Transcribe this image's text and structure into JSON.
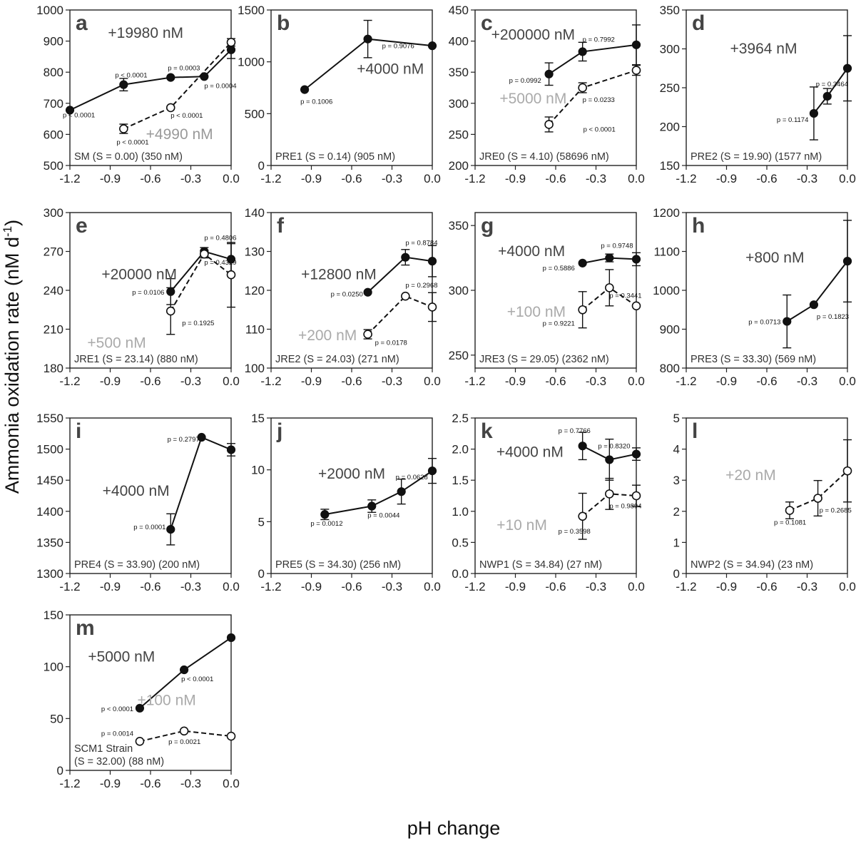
{
  "figure": {
    "y_axis_title": "Ammonia oxidation rate (nM d",
    "y_axis_title_sup": "-1",
    "y_axis_title_end": ")",
    "x_axis_title": "pH change"
  },
  "chart_data": [
    {
      "type": "line",
      "panel": "a",
      "site_label": "SM (S = 0.00) (350 nM)",
      "xlim": [
        -1.2,
        0.0
      ],
      "ylim": [
        500,
        1000
      ],
      "xticks": [
        "-1.2",
        "-0.9",
        "-0.6",
        "-0.3",
        "0.0"
      ],
      "yticks": [
        "500",
        "600",
        "700",
        "800",
        "900",
        "1000"
      ],
      "series": [
        {
          "name": "+19980 nM",
          "style": "filled-solid",
          "color": "#444444",
          "x": [
            -1.2,
            -0.8,
            -0.45,
            -0.2,
            0.0
          ],
          "y": [
            678,
            760,
            783,
            786,
            872
          ],
          "err": [
            0,
            20,
            0,
            0,
            28
          ],
          "p": [
            "p < 0.0001",
            "p < 0.0001",
            "p = 0.0003",
            "p = 0.0004",
            ""
          ]
        },
        {
          "name": "+4990 nM",
          "style": "open-dashed",
          "color": "#999999",
          "x": [
            -0.8,
            -0.45,
            0.0
          ],
          "y": [
            618,
            686,
            896
          ],
          "err": [
            15,
            0,
            12
          ],
          "p": [
            "p < 0.0001",
            "p < 0.0001",
            ""
          ]
        }
      ]
    },
    {
      "type": "line",
      "panel": "b",
      "site_label": "PRE1 (S = 0.14) (905 nM)",
      "xlim": [
        -1.2,
        0.0
      ],
      "ylim": [
        0,
        1500
      ],
      "xticks": [
        "-1.2",
        "-0.9",
        "-0.6",
        "-0.3",
        "0.0"
      ],
      "yticks": [
        "0",
        "500",
        "1000",
        "1500"
      ],
      "series": [
        {
          "name": "+4000 nM",
          "style": "filled-solid",
          "color": "#444444",
          "x": [
            -0.95,
            -0.48,
            0.0
          ],
          "y": [
            732,
            1220,
            1155
          ],
          "err": [
            0,
            180,
            0
          ],
          "p": [
            "p = 0.1006",
            "p = 0.9076",
            ""
          ]
        }
      ]
    },
    {
      "type": "line",
      "panel": "c",
      "site_label": "JRE0 (S = 4.10) (58696 nM)",
      "xlim": [
        -1.2,
        0.0
      ],
      "ylim": [
        200,
        450
      ],
      "xticks": [
        "-1.2",
        "-0.9",
        "-0.6",
        "-0.3",
        "0.0"
      ],
      "yticks": [
        "200",
        "250",
        "300",
        "350",
        "400",
        "450"
      ],
      "series": [
        {
          "name": "+200000 nM",
          "style": "filled-solid",
          "color": "#444444",
          "x": [
            -0.65,
            -0.4,
            0.0
          ],
          "y": [
            347,
            383,
            394
          ],
          "err": [
            18,
            15,
            32
          ],
          "p": [
            "p = 0.0992",
            "p = 0.7992",
            ""
          ]
        },
        {
          "name": "+5000 nM",
          "style": "open-dashed",
          "color": "#aaaaaa",
          "x": [
            -0.65,
            -0.4,
            0.0
          ],
          "y": [
            266,
            325,
            353
          ],
          "err": [
            12,
            8,
            8
          ],
          "p": [
            "p < 0.0001",
            "p = 0.0233",
            ""
          ]
        }
      ]
    },
    {
      "type": "line",
      "panel": "d",
      "site_label": "PRE2 (S = 19.90) (1577 nM)",
      "xlim": [
        -1.2,
        0.0
      ],
      "ylim": [
        150,
        350
      ],
      "xticks": [
        "-1.2",
        "-0.9",
        "-0.6",
        "-0.3",
        "0.0"
      ],
      "yticks": [
        "150",
        "200",
        "250",
        "300",
        "350"
      ],
      "series": [
        {
          "name": "+3964 nM",
          "style": "filled-solid",
          "color": "#444444",
          "x": [
            -0.25,
            -0.15,
            0.0
          ],
          "y": [
            217,
            239,
            275
          ],
          "err": [
            34,
            10,
            42
          ],
          "p": [
            "p = 0.1174",
            "p = 0.3464",
            ""
          ]
        }
      ]
    },
    {
      "type": "line",
      "panel": "e",
      "site_label": "JRE1 (S = 23.14) (880 nM)",
      "xlim": [
        -1.2,
        0.0
      ],
      "ylim": [
        180,
        300
      ],
      "xticks": [
        "-1.2",
        "-0.9",
        "-0.6",
        "-0.3",
        "0.0"
      ],
      "yticks": [
        "180",
        "210",
        "240",
        "270",
        "300"
      ],
      "series": [
        {
          "name": "+20000 nM",
          "style": "filled-solid",
          "color": "#444444",
          "x": [
            -0.45,
            -0.2,
            0.0
          ],
          "y": [
            239,
            270,
            264
          ],
          "err": [
            10,
            3,
            12
          ],
          "p": [
            "p = 0.0106",
            "p = 0.4806",
            ""
          ]
        },
        {
          "name": "+500 nM",
          "style": "open-dashed",
          "color": "#aaaaaa",
          "x": [
            -0.45,
            -0.2,
            0.0
          ],
          "y": [
            224,
            268,
            252
          ],
          "err": [
            18,
            3,
            25
          ],
          "p": [
            "p = 0.1925",
            "p = 0.4329",
            ""
          ]
        }
      ]
    },
    {
      "type": "line",
      "panel": "f",
      "site_label": "JRE2 (S = 24.03) (271 nM)",
      "xlim": [
        -1.2,
        0.0
      ],
      "ylim": [
        100,
        140
      ],
      "xticks": [
        "-1.2",
        "-0.9",
        "-0.6",
        "-0.3",
        "0.0"
      ],
      "yticks": [
        "100",
        "110",
        "120",
        "130",
        "140"
      ],
      "series": [
        {
          "name": "+12800 nM",
          "style": "filled-solid",
          "color": "#444444",
          "x": [
            -0.48,
            -0.2,
            0.0
          ],
          "y": [
            119.5,
            128.5,
            127.5
          ],
          "err": [
            0,
            2,
            4
          ],
          "p": [
            "p = 0.0250",
            "p = 0.8784",
            ""
          ]
        },
        {
          "name": "+200 nM",
          "style": "open-dashed",
          "color": "#aaaaaa",
          "x": [
            -0.48,
            -0.2,
            0.0
          ],
          "y": [
            108.7,
            118.5,
            115.7
          ],
          "err": [
            1.2,
            0,
            3.7
          ],
          "p": [
            "p = 0.0178",
            "p = 0.2968",
            ""
          ]
        }
      ]
    },
    {
      "type": "line",
      "panel": "g",
      "site_label": "JRE3 (S = 29.05) (2362 nM)",
      "xlim": [
        -1.2,
        0.0
      ],
      "ylim": [
        240,
        360
      ],
      "xticks": [
        "-1.2",
        "-0.9",
        "-0.6",
        "-0.3",
        "0.0"
      ],
      "yticks": [
        "250",
        "300",
        "350"
      ],
      "series": [
        {
          "name": "+4000 nM",
          "style": "filled-solid",
          "color": "#444444",
          "x": [
            -0.4,
            -0.2,
            0.0
          ],
          "y": [
            321,
            325,
            324
          ],
          "err": [
            0,
            3,
            5
          ],
          "p": [
            "p = 0.5886",
            "p = 0.9748",
            ""
          ]
        },
        {
          "name": "+100 nM",
          "style": "open-dashed",
          "color": "#aaaaaa",
          "x": [
            -0.4,
            -0.2,
            0.0
          ],
          "y": [
            285,
            302,
            288
          ],
          "err": [
            14,
            14,
            0
          ],
          "p": [
            "p = 0.9221",
            "p = 0.3441",
            ""
          ]
        }
      ]
    },
    {
      "type": "line",
      "panel": "h",
      "site_label": "PRE3 (S = 33.30) (569 nM)",
      "xlim": [
        -1.2,
        0.0
      ],
      "ylim": [
        800,
        1200
      ],
      "xticks": [
        "-1.2",
        "-0.9",
        "-0.6",
        "-0.3",
        "0.0"
      ],
      "yticks": [
        "800",
        "900",
        "1000",
        "1100",
        "1200"
      ],
      "series": [
        {
          "name": "+800 nM",
          "style": "filled-solid",
          "color": "#444444",
          "x": [
            -0.45,
            -0.25,
            0.0
          ],
          "y": [
            920,
            963,
            1075
          ],
          "err": [
            68,
            0,
            105
          ],
          "p": [
            "p = 0.0713",
            "p = 0.1823",
            ""
          ]
        }
      ]
    },
    {
      "type": "line",
      "panel": "i",
      "site_label": "PRE4 (S = 33.90) (200 nM)",
      "xlim": [
        -1.2,
        0.0
      ],
      "ylim": [
        1300,
        1550
      ],
      "xticks": [
        "-1.2",
        "-0.9",
        "-0.6",
        "-0.3",
        "0.0"
      ],
      "yticks": [
        "1300",
        "1350",
        "1400",
        "1450",
        "1500",
        "1550"
      ],
      "series": [
        {
          "name": "+4000 nM",
          "style": "filled-solid",
          "color": "#444444",
          "x": [
            -0.45,
            -0.22,
            0.0
          ],
          "y": [
            1371,
            1519,
            1499
          ],
          "err": [
            25,
            0,
            10
          ],
          "p": [
            "p = 0.0001",
            "p = 0.2797",
            ""
          ]
        }
      ]
    },
    {
      "type": "line",
      "panel": "j",
      "site_label": "PRE5 (S = 34.30) (256 nM)",
      "xlim": [
        -1.2,
        0.0
      ],
      "ylim": [
        0,
        15
      ],
      "xticks": [
        "-1.2",
        "-0.9",
        "-0.6",
        "-0.3",
        "0.0"
      ],
      "yticks": [
        "0",
        "5",
        "10",
        "15"
      ],
      "series": [
        {
          "name": "+2000 nM",
          "style": "filled-solid",
          "color": "#444444",
          "x": [
            -0.8,
            -0.45,
            -0.23,
            0.0
          ],
          "y": [
            5.7,
            6.5,
            7.9,
            9.9
          ],
          "err": [
            0.5,
            0.6,
            1.2,
            1.2
          ],
          "p": [
            "p = 0.0012",
            "p = 0.0044",
            "p = 0.0628",
            ""
          ]
        }
      ]
    },
    {
      "type": "line",
      "panel": "k",
      "site_label": "NWP1 (S = 34.84) (27 nM)",
      "xlim": [
        -1.2,
        0.0
      ],
      "ylim": [
        0,
        2.5
      ],
      "xticks": [
        "-1.2",
        "-0.9",
        "-0.6",
        "-0.3",
        "0.0"
      ],
      "yticks": [
        "0.0",
        "0.5",
        "1.0",
        "1.5",
        "2.0",
        "2.5"
      ],
      "series": [
        {
          "name": "+4000 nM",
          "style": "filled-solid",
          "color": "#444444",
          "x": [
            -0.4,
            -0.2,
            0.0
          ],
          "y": [
            2.05,
            1.83,
            1.92
          ],
          "err": [
            0.22,
            0.33,
            0.1
          ],
          "p": [
            "p = 0.7766",
            "p = 0.8320",
            ""
          ]
        },
        {
          "name": "+10 nM",
          "style": "open-dashed",
          "color": "#aaaaaa",
          "x": [
            -0.4,
            -0.2,
            0.0
          ],
          "y": [
            0.92,
            1.28,
            1.25
          ],
          "err": [
            0.37,
            0.25,
            0.17
          ],
          "p": [
            "p = 0.3598",
            "p = 0.9894",
            ""
          ]
        }
      ]
    },
    {
      "type": "line",
      "panel": "l",
      "site_label": "NWP2 (S = 34.94) (23 nM)",
      "xlim": [
        -1.2,
        0.0
      ],
      "ylim": [
        0,
        5
      ],
      "xticks": [
        "-1.2",
        "-0.9",
        "-0.6",
        "-0.3",
        "0.0"
      ],
      "yticks": [
        "0",
        "1",
        "2",
        "3",
        "4",
        "5"
      ],
      "series": [
        {
          "name": "+20 nM",
          "style": "open-dashed",
          "color": "#aaaaaa",
          "x": [
            -0.43,
            -0.22,
            0.0
          ],
          "y": [
            2.03,
            2.42,
            3.3
          ],
          "err": [
            0.27,
            0.57,
            1.0
          ],
          "p": [
            "p = 0.1081",
            "p = 0.2685",
            ""
          ]
        }
      ]
    },
    {
      "type": "line",
      "panel": "m",
      "site_label": "SCM1 Strain",
      "site_label_2": "(S = 32.00) (88 nM)",
      "xlim": [
        -1.2,
        0.0
      ],
      "ylim": [
        0,
        150
      ],
      "xticks": [
        "-1.2",
        "-0.9",
        "-0.6",
        "-0.3",
        "0.0"
      ],
      "yticks": [
        "0",
        "50",
        "100",
        "150"
      ],
      "series": [
        {
          "name": "+5000 nM",
          "style": "filled-solid",
          "color": "#444444",
          "x": [
            -0.68,
            -0.35,
            0.0
          ],
          "y": [
            60,
            97,
            128
          ],
          "err": [
            0,
            0,
            0
          ],
          "p": [
            "p < 0.0001",
            "p < 0.0001",
            ""
          ]
        },
        {
          "name": "+100 nM",
          "style": "open-dashed",
          "color": "#aaaaaa",
          "x": [
            -0.68,
            -0.35,
            0.0
          ],
          "y": [
            28,
            38,
            33
          ],
          "err": [
            0,
            0,
            0
          ],
          "p": [
            "p = 0.0014",
            "p = 0.0021",
            ""
          ]
        }
      ]
    }
  ]
}
